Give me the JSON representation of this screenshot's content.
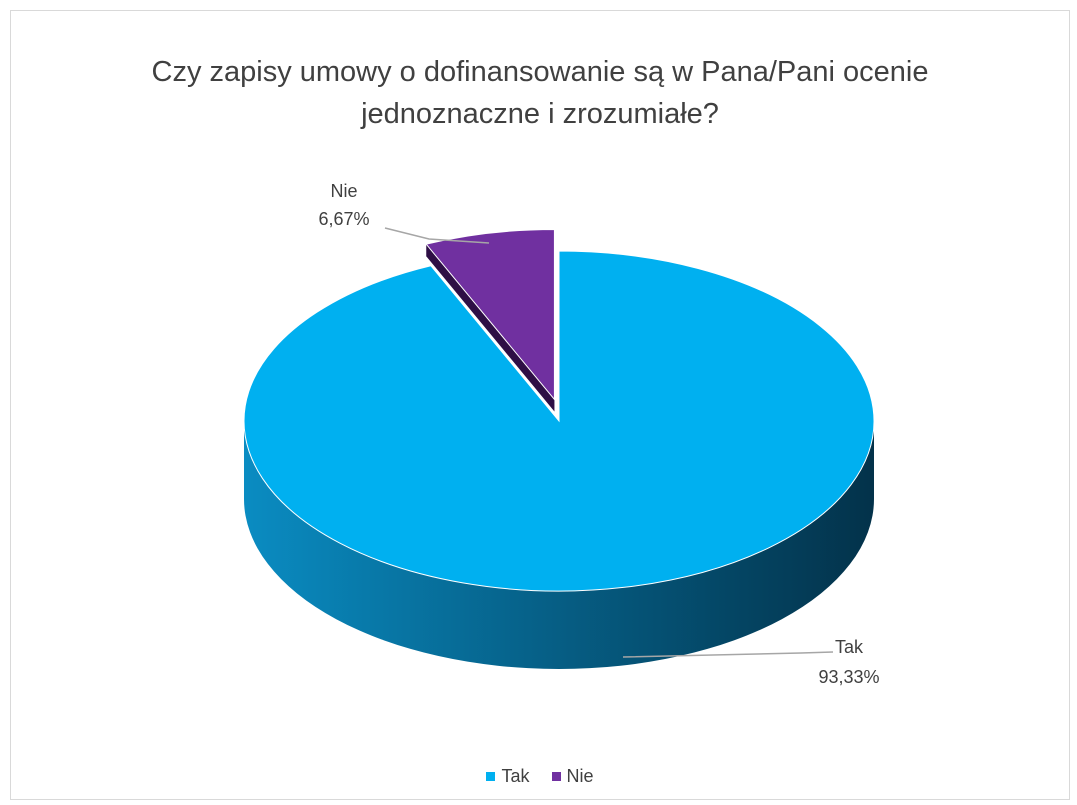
{
  "chart_data": {
    "type": "pie",
    "title": "Czy zapisy umowy o dofinansowanie są w Pana/Pani ocenie jednoznaczne i zrozumiałe?",
    "title_lines": [
      "Czy zapisy umowy o dofinansowanie są w Pana/Pani ocenie",
      "jednoznaczne i zrozumiałe?"
    ],
    "three_d": true,
    "exploded_slice": "Nie",
    "slices": [
      {
        "label": "Tak",
        "value": 93.33,
        "value_text": "93,33%",
        "color": "#00b0f0",
        "side_color": "#0a7fb0"
      },
      {
        "label": "Nie",
        "value": 6.67,
        "value_text": "6,67%",
        "color": "#7030a0",
        "side_color": "#2e0f45"
      }
    ],
    "legend": {
      "position": "bottom",
      "items": [
        {
          "label": "Tak",
          "color": "#00b0f0"
        },
        {
          "label": "Nie",
          "color": "#7030a0"
        }
      ]
    }
  }
}
